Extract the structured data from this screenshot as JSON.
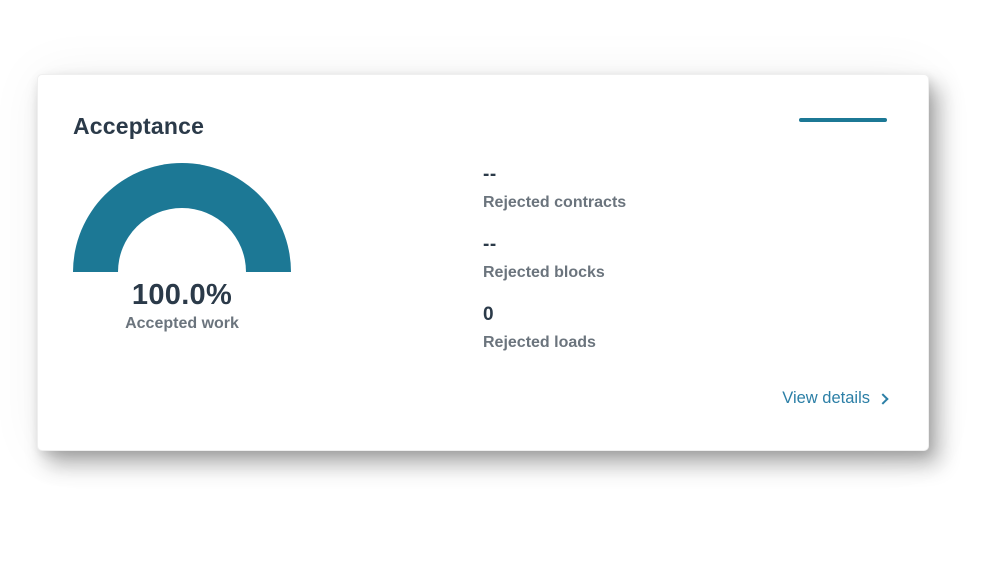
{
  "card": {
    "title": "Acceptance",
    "view_details_label": "View details"
  },
  "gauge": {
    "value_label": "100.0%",
    "caption": "Accepted work"
  },
  "metrics": {
    "items": [
      {
        "value": "--",
        "label": "Rejected contracts"
      },
      {
        "value": "--",
        "label": "Rejected blocks"
      },
      {
        "value": "0",
        "label": "Rejected loads"
      }
    ]
  },
  "chart_data": {
    "type": "gauge",
    "title": "Acceptance",
    "value": 100.0,
    "min": 0,
    "max": 100,
    "unit": "%",
    "label": "Accepted work",
    "accent_color": "#1c7895",
    "track_color": "#eaeded"
  },
  "colors": {
    "accent": "#1c7895",
    "link": "#2c7fa6",
    "heading": "#2b3a49",
    "muted": "#6b747d",
    "card_background": "#ffffff"
  }
}
